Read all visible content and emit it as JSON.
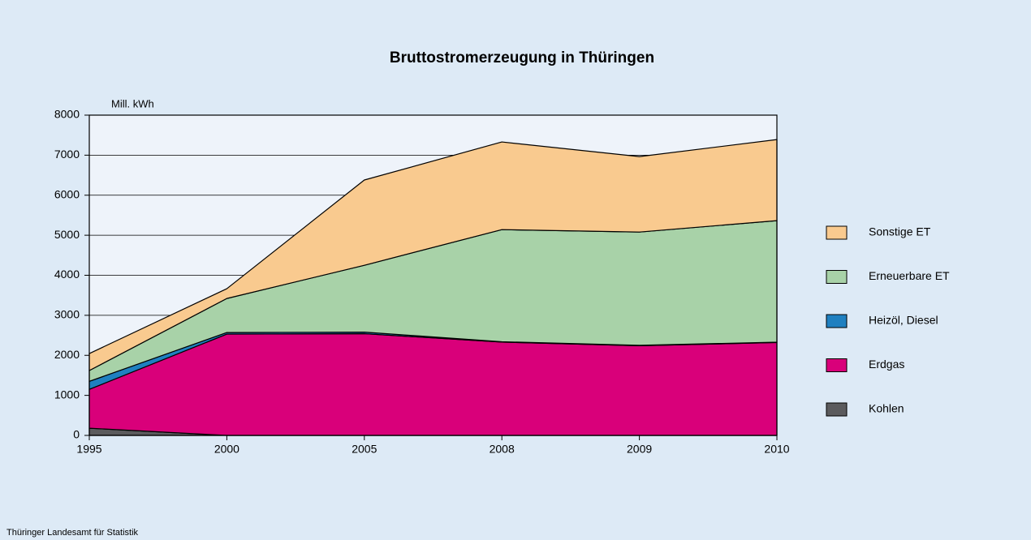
{
  "chart_data": {
    "type": "stacked_area",
    "title": "Bruttostromerzeugung in Thüringen",
    "y_label": "Mill. kWh",
    "source": "Thüringer Landesamt für Statistik",
    "categories": [
      "1995",
      "2000",
      "2005",
      "2008",
      "2009",
      "2010"
    ],
    "series": [
      {
        "name": "Kohlen",
        "color": "#5b5b5d",
        "values": [
          180,
          0,
          0,
          0,
          0,
          0
        ]
      },
      {
        "name": "Erdgas",
        "color": "#d9007a",
        "values": [
          970,
          2530,
          2540,
          2330,
          2240,
          2320
        ]
      },
      {
        "name": "Heizöl, Diesel",
        "color": "#1f80c0",
        "values": [
          200,
          40,
          40,
          10,
          10,
          10
        ]
      },
      {
        "name": "Erneuerbare ET",
        "color": "#a8d2a8",
        "values": [
          270,
          850,
          1670,
          2800,
          2830,
          3035
        ]
      },
      {
        "name": "Sonstige ET",
        "color": "#f9ca8f",
        "values": [
          425,
          245,
          2130,
          2190,
          1885,
          2025
        ]
      }
    ],
    "ylim": [
      0,
      8000
    ],
    "yticks": [
      0,
      1000,
      2000,
      3000,
      4000,
      5000,
      6000,
      7000,
      8000
    ],
    "grid": true,
    "legend": "right"
  }
}
